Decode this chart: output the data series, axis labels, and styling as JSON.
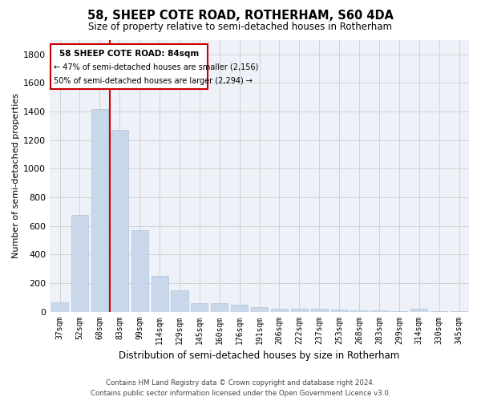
{
  "title": "58, SHEEP COTE ROAD, ROTHERHAM, S60 4DA",
  "subtitle": "Size of property relative to semi-detached houses in Rotherham",
  "xlabel": "Distribution of semi-detached houses by size in Rotherham",
  "ylabel": "Number of semi-detached properties",
  "categories": [
    "37sqm",
    "52sqm",
    "68sqm",
    "83sqm",
    "99sqm",
    "114sqm",
    "129sqm",
    "145sqm",
    "160sqm",
    "176sqm",
    "191sqm",
    "206sqm",
    "222sqm",
    "237sqm",
    "253sqm",
    "268sqm",
    "283sqm",
    "299sqm",
    "314sqm",
    "330sqm",
    "345sqm"
  ],
  "values": [
    65,
    675,
    1420,
    1270,
    570,
    250,
    150,
    62,
    60,
    48,
    30,
    22,
    22,
    18,
    15,
    10,
    8,
    5,
    18,
    5,
    2
  ],
  "bar_color": "#c8d8ea",
  "bar_edge_color": "#b0c4d8",
  "grid_color": "#cccccc",
  "bg_color": "#eef2f8",
  "property_bin_index": 3,
  "annotation_title": "58 SHEEP COTE ROAD: 84sqm",
  "annotation_line1": "← 47% of semi-detached houses are smaller (2,156)",
  "annotation_line2": "50% of semi-detached houses are larger (2,294) →",
  "red_line_color": "#cc0000",
  "ylim": [
    0,
    1900
  ],
  "yticks": [
    0,
    200,
    400,
    600,
    800,
    1000,
    1200,
    1400,
    1600,
    1800
  ],
  "footer1": "Contains HM Land Registry data © Crown copyright and database right 2024.",
  "footer2": "Contains public sector information licensed under the Open Government Licence v3.0."
}
